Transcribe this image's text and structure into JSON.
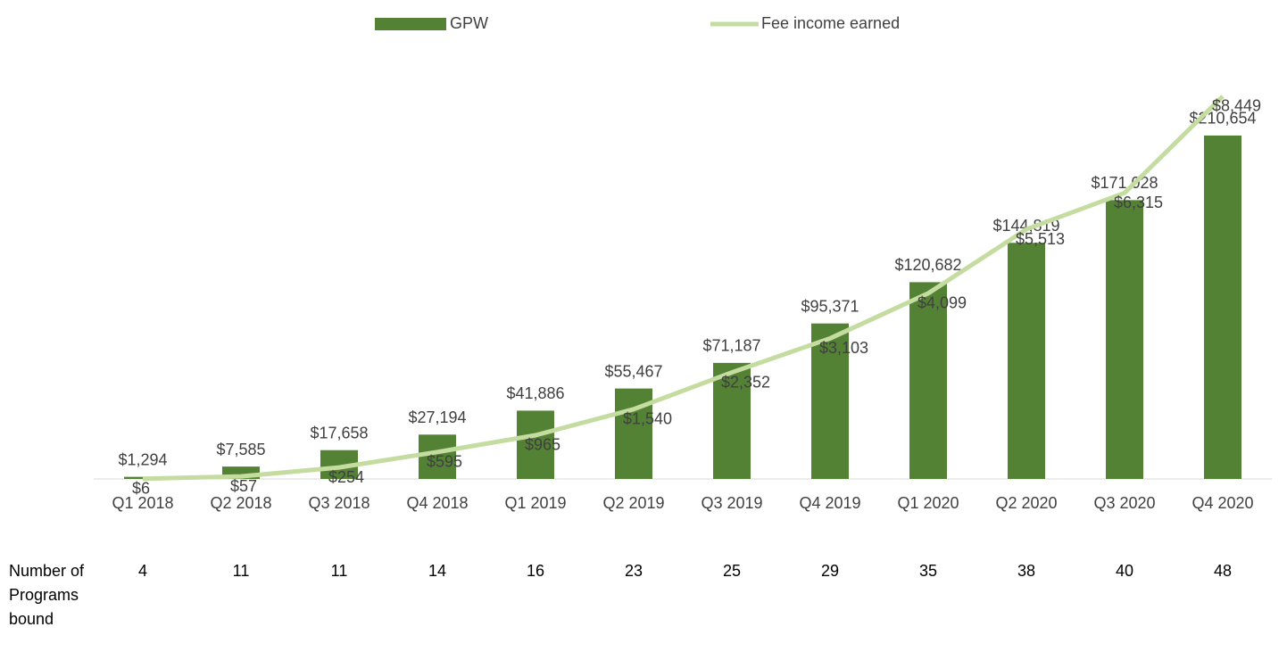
{
  "chart_data": {
    "type": "bar-line",
    "categories": [
      "Q1 2018",
      "Q2 2018",
      "Q3 2018",
      "Q4 2018",
      "Q1 2019",
      "Q2 2019",
      "Q3 2019",
      "Q4 2019",
      "Q1 2020",
      "Q2 2020",
      "Q3 2020",
      "Q4 2020"
    ],
    "series": [
      {
        "name": "GPW",
        "type": "bar",
        "color": "#548235",
        "values": [
          1294,
          7585,
          17658,
          27194,
          41886,
          55467,
          71187,
          95371,
          120682,
          144819,
          171028,
          210654
        ],
        "value_labels": [
          "$1,294",
          "$7,585",
          "$17,658",
          "$27,194",
          "$41,886",
          "$55,467",
          "$71,187",
          "$95,371",
          "$120,682",
          "$144,819",
          "$171,028",
          "$210,654"
        ]
      },
      {
        "name": "Fee income earned",
        "type": "line",
        "axis": "y2",
        "color": "#c5dca0",
        "values": [
          6,
          57,
          254,
          595,
          965,
          1540,
          2352,
          3103,
          4099,
          5513,
          6315,
          8449
        ],
        "value_labels": [
          "$6",
          "$57",
          "$254",
          "$595",
          "$965",
          "$1,540",
          "$2,352",
          "$3,103",
          "$4,099",
          "$5,513",
          "$6,315",
          "$8,449"
        ]
      }
    ],
    "ylim": [
      0,
      250000
    ],
    "y2lim": [
      0,
      9000
    ],
    "legend": "top",
    "programs": {
      "label": "Number of Programs bound",
      "values": [
        4,
        11,
        11,
        14,
        16,
        23,
        25,
        29,
        35,
        38,
        40,
        48
      ]
    }
  }
}
